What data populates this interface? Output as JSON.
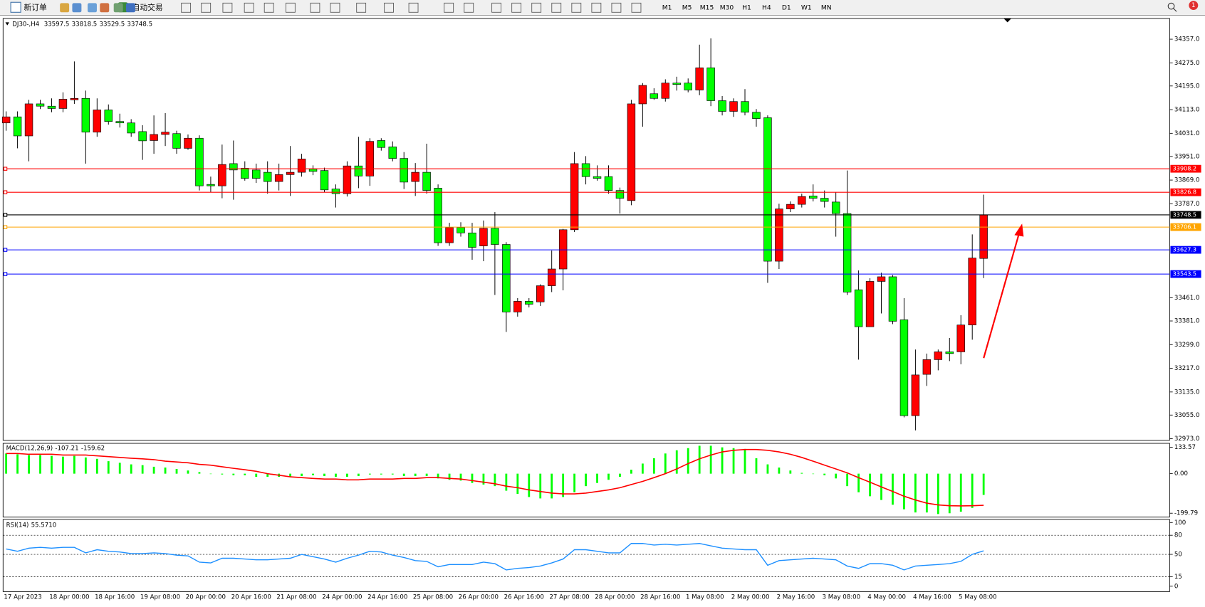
{
  "toolbar": {
    "new_order": "新订单",
    "auto_trading": "自动交易",
    "timeframes": [
      "M1",
      "M5",
      "M15",
      "M30",
      "H1",
      "H4",
      "D1",
      "W1",
      "MN"
    ],
    "badge": 1
  },
  "chart_data": [
    {
      "type": "candlestick",
      "symbol": "DJ30-,H4",
      "up_color": "#ff0000",
      "down_color": "#00ff00",
      "categories": [
        "17 Apr 2023",
        null,
        null,
        null,
        "18 Apr 00:00",
        null,
        null,
        null,
        "18 Apr 16:00",
        null,
        null,
        null,
        "19 Apr 08:00",
        null,
        null,
        null,
        "20 Apr 00:00",
        null,
        null,
        null,
        "20 Apr 16:00",
        null,
        null,
        null,
        "21 Apr 08:00",
        null,
        null,
        null,
        "24 Apr 00:00",
        null,
        null,
        null,
        "24 Apr 16:00",
        null,
        null,
        null,
        "25 Apr 08:00",
        null,
        null,
        null,
        "26 Apr 00:00",
        null,
        null,
        null,
        "26 Apr 16:00",
        null,
        null,
        null,
        "27 Apr 08:00",
        null,
        null,
        null,
        "28 Apr 00:00",
        null,
        null,
        null,
        "28 Apr 16:00",
        null,
        null,
        null,
        "1 May 08:00",
        null,
        null,
        null,
        "2 May 00:00",
        null,
        null,
        null,
        "2 May 16:00",
        null,
        null,
        null,
        "3 May 08:00",
        null,
        null,
        null,
        "4 May 00:00",
        null,
        null,
        null,
        "4 May 16:00",
        null,
        null,
        null,
        "5 May 08:00",
        null,
        null
      ],
      "open": [
        34067,
        34088,
        34022,
        34133,
        34125,
        34117,
        34147,
        34152,
        34035,
        34112,
        34072,
        34067,
        34037,
        34006,
        34027,
        34030,
        33979,
        34014,
        33854,
        33849,
        33926,
        33910,
        33904,
        33896,
        33864,
        33888,
        33896,
        33907,
        33902,
        33838,
        33822,
        33918,
        33883,
        34006,
        33984,
        33944,
        33864,
        33896,
        33841,
        33652,
        33705,
        33686,
        33641,
        33702,
        33646,
        33412,
        33449,
        33447,
        33503,
        33561,
        33697,
        33926,
        33881,
        33881,
        33833,
        33798,
        34133,
        34168,
        34152,
        34205,
        34205,
        34181,
        34258,
        34144,
        34107,
        34141,
        34104,
        34085,
        33588,
        33769,
        33785,
        33814,
        33806,
        33793,
        33753,
        33489,
        33361,
        33518,
        33534,
        33385,
        33053,
        33196,
        33247,
        33274,
        33274,
        33367,
        33597.5
      ],
      "high": [
        34107,
        34107,
        34147,
        34147,
        34152,
        34173,
        34280,
        34179,
        34152,
        34131,
        34099,
        34080,
        34059,
        34093,
        34101,
        34040,
        34027,
        34024,
        33881,
        33992,
        34006,
        33934,
        33926,
        33934,
        33926,
        33987,
        33960,
        33920,
        33912,
        33854,
        33934,
        34019,
        34014,
        34014,
        34003,
        33966,
        33928,
        33995,
        33854,
        33721,
        33723,
        33721,
        33729,
        33758,
        33654,
        33460,
        33460,
        33508,
        33625,
        33700,
        33966,
        33952,
        33920,
        33920,
        33843,
        34147,
        34205,
        34187,
        34218,
        34227,
        34221,
        34338,
        34360,
        34160,
        34152,
        34184,
        34115,
        34093,
        33787,
        33795,
        33822,
        33854,
        33833,
        33827,
        33902,
        33556,
        33529,
        33548,
        33540,
        33460,
        33282,
        33268,
        33282,
        33322,
        33401,
        33681,
        33818.5
      ],
      "low": [
        34040,
        33979,
        33934,
        34115,
        34104,
        34104,
        34133,
        33926,
        34019,
        34061,
        34051,
        34019,
        33939,
        33960,
        33987,
        33960,
        33974,
        33833,
        33827,
        33806,
        33801,
        33867,
        33859,
        33822,
        33833,
        33814,
        33881,
        33886,
        33827,
        33774,
        33812,
        33841,
        33849,
        33971,
        33934,
        33838,
        33814,
        33822,
        33641,
        33641,
        33673,
        33593,
        33588,
        33471,
        33343,
        33396,
        33428,
        33433,
        33481,
        33487,
        33689,
        33854,
        33867,
        33822,
        33753,
        33782,
        34054,
        34147,
        34141,
        34179,
        34173,
        34163,
        34125,
        34093,
        34088,
        34093,
        34054,
        33513,
        33561,
        33758,
        33774,
        33795,
        33774,
        33673,
        33471,
        33247,
        33361,
        33407,
        33370,
        33047,
        33002,
        33156,
        33210,
        33242,
        33231,
        33316,
        33529.5
      ],
      "close": [
        34088,
        34022,
        34133,
        34125,
        34117,
        34149,
        34152,
        34035,
        34112,
        34072,
        34067,
        34032,
        34005,
        34027,
        34035,
        33979,
        34014,
        33849,
        33849,
        33923,
        33904,
        33875,
        33875,
        33864,
        33888,
        33896,
        33942,
        33899,
        33835,
        33822,
        33918,
        33883,
        34003,
        33982,
        33944,
        33862,
        33896,
        33833,
        33652,
        33705,
        33686,
        33636,
        33702,
        33646,
        33412,
        33449,
        33439,
        33503,
        33561,
        33697,
        33926,
        33881,
        33875,
        33833,
        33806,
        34133,
        34197,
        34152,
        34205,
        34200,
        34181,
        34258,
        34144,
        34107,
        34141,
        34104,
        34082,
        33588,
        33769,
        33785,
        33812,
        33806,
        33795,
        33753,
        33481,
        33361,
        33518,
        33534,
        33380,
        33053,
        33194,
        33247,
        33274,
        33268,
        33367,
        33599,
        33748.5
      ],
      "ylim": [
        32967.7,
        34428.9
      ],
      "yticks": [
        {
          "value": 34357,
          "label": "34357.0"
        },
        {
          "value": 34275,
          "label": "34275.0"
        },
        {
          "value": 34195,
          "label": "34195.0"
        },
        {
          "value": 34113,
          "label": "34113.0"
        },
        {
          "value": 34031,
          "label": "34031.0"
        },
        {
          "value": 33951,
          "label": "33951.0"
        },
        {
          "value": 33869,
          "label": "33869.0"
        },
        {
          "value": 33787,
          "label": "33787.0"
        },
        {
          "value": 33461,
          "label": "33461.0"
        },
        {
          "value": 33381,
          "label": "33381.0"
        },
        {
          "value": 33299,
          "label": "33299.0"
        },
        {
          "value": 33217,
          "label": "33217.0"
        },
        {
          "value": 33135,
          "label": "33135.0"
        },
        {
          "value": 33055,
          "label": "33055.0"
        },
        {
          "value": 32973,
          "label": "32973.0"
        }
      ],
      "levels": [
        {
          "value": 33908.2,
          "color": "#ff0000"
        },
        {
          "value": 33826.8,
          "color": "#ff0000"
        },
        {
          "value": 33748.5,
          "color": "#000000"
        },
        {
          "value": 33706.1,
          "color": "#ffa500"
        },
        {
          "value": 33627.3,
          "color": "#0000ff"
        },
        {
          "value": 33543.5,
          "color": "#0000ff"
        }
      ]
    },
    {
      "type": "macd",
      "name": "MACD(12,26,9)",
      "hist_color": "#00ff00",
      "signal_color": "#ff0000",
      "histogram": [
        102,
        98,
        94,
        94,
        90,
        86,
        90,
        82,
        75,
        63,
        55,
        47,
        43,
        35,
        31,
        24,
        16,
        8,
        0,
        -4,
        -8,
        -8,
        -16,
        -16,
        -16,
        -16,
        -12,
        -8,
        -12,
        -16,
        -16,
        -12,
        -4,
        -4,
        -4,
        -12,
        -12,
        -12,
        -24,
        -31,
        -35,
        -47,
        -55,
        -63,
        -86,
        -102,
        -118,
        -125,
        -125,
        -118,
        -94,
        -63,
        -47,
        -31,
        -16,
        20,
        51,
        78,
        102,
        118,
        129,
        141,
        141,
        133,
        129,
        125,
        78,
        47,
        31,
        16,
        4,
        0,
        -8,
        -24,
        -63,
        -94,
        -114,
        -133,
        -157,
        -180,
        -196,
        -196,
        -204,
        -200,
        -192,
        -173,
        -107.21
      ],
      "signal": [
        102,
        102,
        98,
        98,
        98,
        94,
        94,
        94,
        90,
        86,
        82,
        78,
        75,
        71,
        63,
        59,
        55,
        47,
        43,
        35,
        27,
        20,
        12,
        0,
        -8,
        -16,
        -20,
        -24,
        -27,
        -27,
        -31,
        -31,
        -27,
        -27,
        -27,
        -24,
        -24,
        -20,
        -20,
        -24,
        -27,
        -35,
        -43,
        -51,
        -63,
        -71,
        -82,
        -90,
        -98,
        -102,
        -102,
        -98,
        -90,
        -82,
        -71,
        -55,
        -39,
        -20,
        0,
        24,
        51,
        75,
        94,
        110,
        118,
        122,
        122,
        118,
        110,
        98,
        82,
        63,
        43,
        24,
        4,
        -20,
        -43,
        -67,
        -90,
        -114,
        -133,
        -149,
        -158,
        -162,
        -163,
        -162,
        -159.62
      ],
      "ylim": [
        -219.4,
        153.2
      ],
      "yticks": [
        133.57,
        {
          "value": 0,
          "label": "0.00"
        },
        -199.79
      ]
    },
    {
      "type": "line",
      "name": "RSI(14)",
      "color": "#1e90ff",
      "values": [
        58.5,
        54.9,
        59.8,
        61,
        59.8,
        61,
        61,
        52.4,
        57.3,
        54.9,
        53.7,
        51.2,
        51.2,
        52.4,
        51.2,
        48.8,
        47.6,
        37.8,
        36.6,
        43.9,
        43.9,
        42.7,
        41.5,
        41.5,
        42.7,
        43.9,
        50,
        46.3,
        42.7,
        37.8,
        43.9,
        48.8,
        54.9,
        53.7,
        48.8,
        45.1,
        40.2,
        39,
        30.5,
        34.1,
        34.1,
        34.1,
        37.8,
        35.4,
        25.6,
        28,
        29.3,
        31.7,
        36.6,
        42.7,
        57.3,
        57.3,
        54.9,
        52.4,
        52.4,
        67.1,
        67.1,
        64.6,
        65.9,
        64.6,
        65.9,
        67.1,
        63.4,
        59.8,
        58.5,
        57.3,
        57.3,
        32.9,
        40.2,
        41.5,
        42.7,
        43.9,
        42.7,
        41.5,
        31.7,
        28,
        35.4,
        35.4,
        32.9,
        25.6,
        31.7,
        32.9,
        34.1,
        35.4,
        39,
        50,
        55.571
      ],
      "value_labels": [
        null,
        null,
        null,
        null,
        null,
        null,
        null,
        null,
        null,
        null,
        null,
        null,
        null,
        null,
        null,
        null,
        null,
        null,
        null,
        null,
        null,
        null,
        null,
        null,
        null,
        null,
        null,
        null,
        null,
        null,
        null,
        null,
        null,
        null,
        null,
        null,
        null,
        null,
        null,
        null,
        null,
        null,
        null,
        null,
        null,
        null,
        null,
        null,
        null,
        null,
        null,
        null,
        null,
        null,
        null,
        null,
        null,
        null,
        null,
        null,
        null,
        null,
        null,
        null,
        null,
        null,
        null,
        null,
        null,
        null,
        null,
        null,
        null,
        null,
        null,
        null,
        null,
        null,
        null,
        null,
        null,
        null,
        null,
        null,
        null,
        null,
        "55.5710"
      ],
      "ylim": [
        -8.5,
        104.9
      ],
      "yticks": [
        100,
        80,
        50,
        15,
        0
      ],
      "levels": [
        80,
        50,
        15
      ]
    }
  ]
}
